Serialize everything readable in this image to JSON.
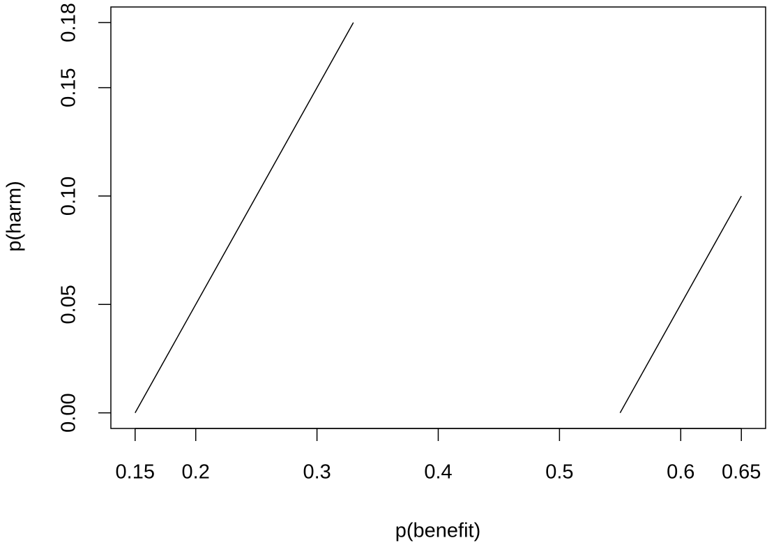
{
  "chart_data": {
    "type": "line",
    "xlabel": "p(benefit)",
    "ylabel": "p(harm)",
    "series": [
      {
        "x": [
          0.15,
          0.33
        ],
        "values": [
          0,
          0.18
        ],
        "color": "#000000"
      },
      {
        "x": [
          0.55,
          0.65
        ],
        "values": [
          0,
          0.1
        ],
        "color": "#000000"
      }
    ],
    "xlim": [
      0.13,
      0.67
    ],
    "ylim": [
      -0.0072,
      0.1872
    ],
    "xticks": [
      0.15,
      0.2,
      0.3,
      0.4,
      0.5,
      0.6,
      0.65
    ],
    "yticks": [
      {
        "value": 0,
        "label": "0.00"
      },
      0.05,
      {
        "value": 0.1,
        "label": "0.10"
      },
      0.15,
      0.18
    ],
    "grid": false
  }
}
